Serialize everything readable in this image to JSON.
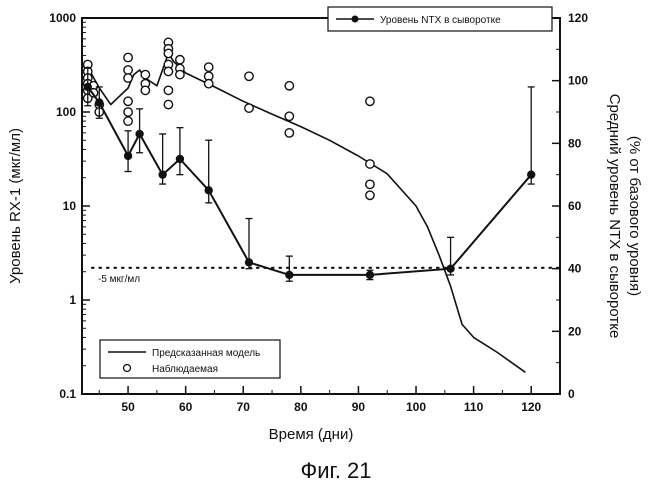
{
  "figure_caption": "Фиг. 21",
  "chart_data": {
    "type": "line",
    "xlabel": "Время (дни)",
    "ylabel_left": "Уровень RX-1 (мкг/мл)",
    "ylabel_right_line1": "Средний уровень NTX в сыворотке",
    "ylabel_right_line2": "(% от базового уровня)",
    "x_ticks": [
      "50",
      "60",
      "70",
      "80",
      "90",
      "100",
      "110",
      "120"
    ],
    "x_tick_values": [
      50,
      60,
      70,
      80,
      90,
      100,
      110,
      120
    ],
    "xlim": [
      42,
      125
    ],
    "ylim_left": [
      0.1,
      1000
    ],
    "y_scale_left": "log",
    "y_ticks_left": [
      "0.1",
      "1",
      "10",
      "100",
      "1000"
    ],
    "y_tick_values_left": [
      0.1,
      1,
      10,
      100,
      1000
    ],
    "ylim_right": [
      0,
      120
    ],
    "y_ticks_right": [
      "0",
      "20",
      "40",
      "60",
      "80",
      "100",
      "120"
    ],
    "y_tick_values_right": [
      0,
      20,
      40,
      60,
      80,
      100,
      120
    ],
    "legend_top": {
      "placement": "top-right",
      "label": "Уровень NTX в сыворотке"
    },
    "legend_bottom": {
      "placement": "bottom-left",
      "model_label": "Предсказанная модель",
      "observed_label": "Наблюдаемая"
    },
    "threshold": {
      "value": 2.2,
      "label": "-5 мкг/мл"
    },
    "series": [
      {
        "name": "Предсказанная модель",
        "axis": "left",
        "style": "line",
        "x": [
          43,
          45,
          47,
          50,
          51,
          52,
          53,
          55,
          57,
          58,
          60,
          65,
          70,
          75,
          80,
          85,
          90,
          95,
          100,
          102,
          104,
          106,
          108,
          110,
          114,
          119
        ],
        "y": [
          300,
          180,
          120,
          180,
          250,
          280,
          230,
          190,
          420,
          340,
          260,
          185,
          130,
          95,
          70,
          50,
          34,
          22,
          10,
          6,
          3,
          1.4,
          0.55,
          0.4,
          0.28,
          0.17
        ]
      },
      {
        "name": "Наблюдаемая",
        "axis": "left",
        "style": "open-circles",
        "x": [
          43,
          43,
          43,
          43,
          43,
          43,
          44,
          44,
          45,
          45,
          50,
          50,
          50,
          50,
          50,
          50,
          53,
          53,
          53,
          57,
          57,
          57,
          57,
          57,
          57,
          57,
          59,
          59,
          59,
          64,
          64,
          64,
          71,
          71,
          78,
          78,
          78,
          92,
          92,
          92,
          92
        ],
        "y": [
          320,
          270,
          230,
          200,
          170,
          140,
          190,
          160,
          120,
          100,
          380,
          280,
          230,
          130,
          100,
          80,
          250,
          200,
          170,
          550,
          470,
          420,
          320,
          270,
          170,
          120,
          360,
          290,
          250,
          300,
          240,
          200,
          240,
          110,
          190,
          90,
          60,
          130,
          28,
          17,
          13
        ]
      },
      {
        "name": "Уровень NTX в сыворотке",
        "axis": "right",
        "style": "line-markers",
        "x": [
          43,
          45,
          50,
          52,
          56,
          59,
          64,
          71,
          78,
          92,
          106,
          120
        ],
        "y": [
          98,
          93,
          76,
          83,
          70,
          75,
          65,
          42,
          38,
          38,
          40,
          70
        ],
        "err_up": [
          6,
          5,
          8,
          8,
          13,
          10,
          16,
          14,
          6,
          1.5,
          10,
          28
        ],
        "err_down": [
          6,
          5,
          5,
          6,
          3,
          5,
          4,
          2,
          2,
          1.5,
          2,
          3
        ]
      }
    ]
  }
}
